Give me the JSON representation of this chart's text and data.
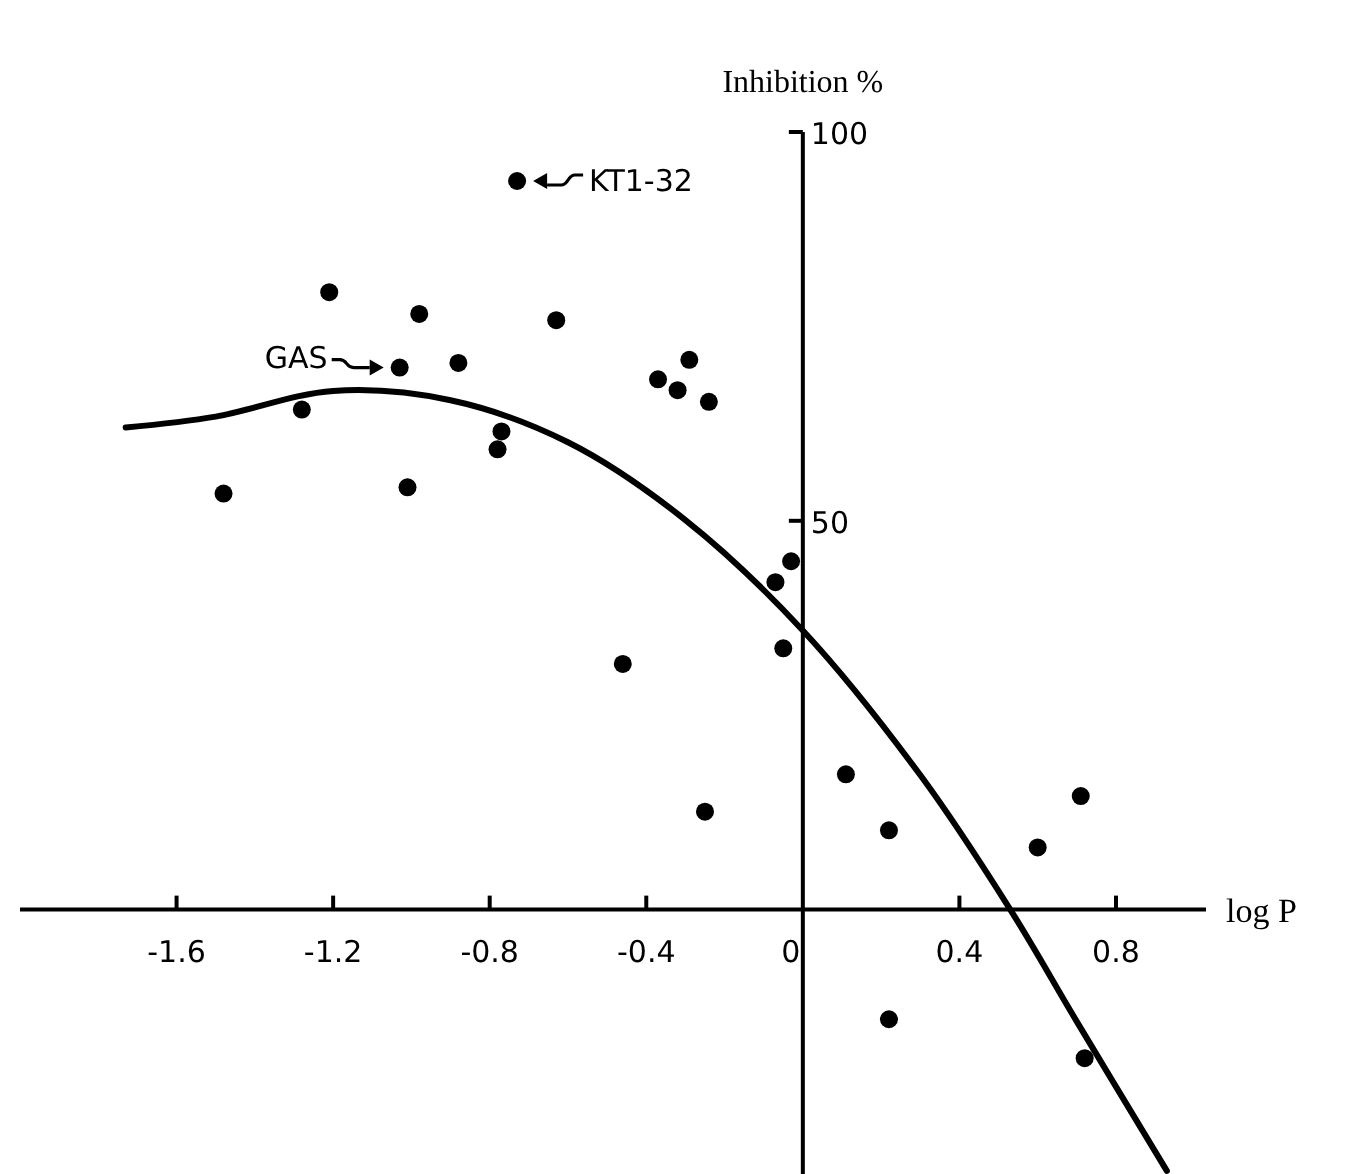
{
  "chart_data": {
    "type": "scatter",
    "xlabel": "log P",
    "ylabel": "Inhibition %",
    "xlim": [
      -2.0,
      1.03
    ],
    "ylim": [
      -34,
      100
    ],
    "xticks": [
      -1.6,
      -1.2,
      -0.8,
      -0.4,
      0,
      0.4,
      0.8
    ],
    "yticks": [
      50,
      100
    ],
    "grid": false,
    "series": [
      {
        "color": "#000000",
        "marker": "circle",
        "x": [
          -0.73,
          -1.21,
          -0.98,
          -0.63,
          -0.88,
          -1.03,
          -0.29,
          -0.37,
          -0.32,
          -0.24,
          -1.28,
          -0.77,
          -0.78,
          -1.48,
          -1.01,
          -0.03,
          -0.07,
          -0.05,
          -0.46,
          0.11,
          -0.25,
          0.22,
          0.6,
          0.71,
          0.22,
          0.72
        ],
        "values": [
          93.7,
          79.4,
          76.6,
          75.8,
          70.3,
          69.7,
          70.7,
          68.2,
          66.8,
          65.3,
          64.3,
          61.5,
          59.2,
          53.5,
          54.3,
          44.8,
          42.1,
          33.6,
          31.6,
          17.4,
          12.6,
          10.2,
          8.0,
          14.6,
          -14.1,
          -19.1
        ]
      },
      {
        "type": "line",
        "color": "#000000",
        "line_style": "solid",
        "marker": "none",
        "x": [
          -1.73,
          -1.5,
          -1.2,
          -0.9,
          -0.6,
          -0.3,
          0,
          0.3,
          0.53,
          0.7,
          0.93
        ],
        "values": [
          62,
          63.4,
          66.7,
          65.5,
          60.1,
          50.1,
          35.9,
          17.3,
          0,
          -14.4,
          -33.6
        ]
      }
    ],
    "annotations": [
      {
        "text": "KT1-32",
        "x": -0.73,
        "y": 93.7
      },
      {
        "text": "GAS",
        "x": -1.03,
        "y": 69.7
      }
    ]
  }
}
